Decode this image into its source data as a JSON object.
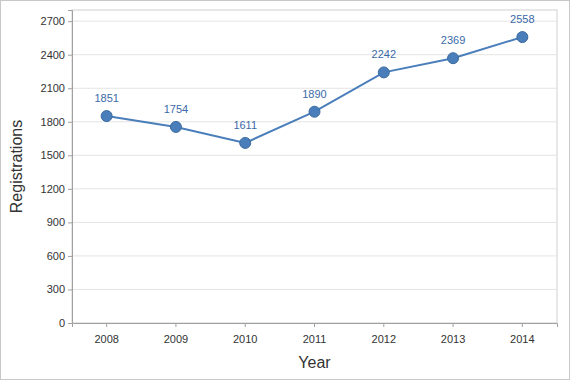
{
  "chart_data": {
    "type": "line",
    "x_label": "Year",
    "y_label": "Registrations",
    "categories": [
      "2008",
      "2009",
      "2010",
      "2011",
      "2012",
      "2013",
      "2014"
    ],
    "values": [
      1851,
      1754,
      1611,
      1890,
      2242,
      2369,
      2558
    ],
    "color": "#4a7ebb",
    "marker": "circle",
    "line_style": "solid",
    "ylim": [
      0,
      2800
    ],
    "yticks": [
      0,
      300,
      600,
      900,
      1200,
      1500,
      1800,
      2100,
      2400,
      2700
    ],
    "grid": true,
    "data_labels": true
  }
}
